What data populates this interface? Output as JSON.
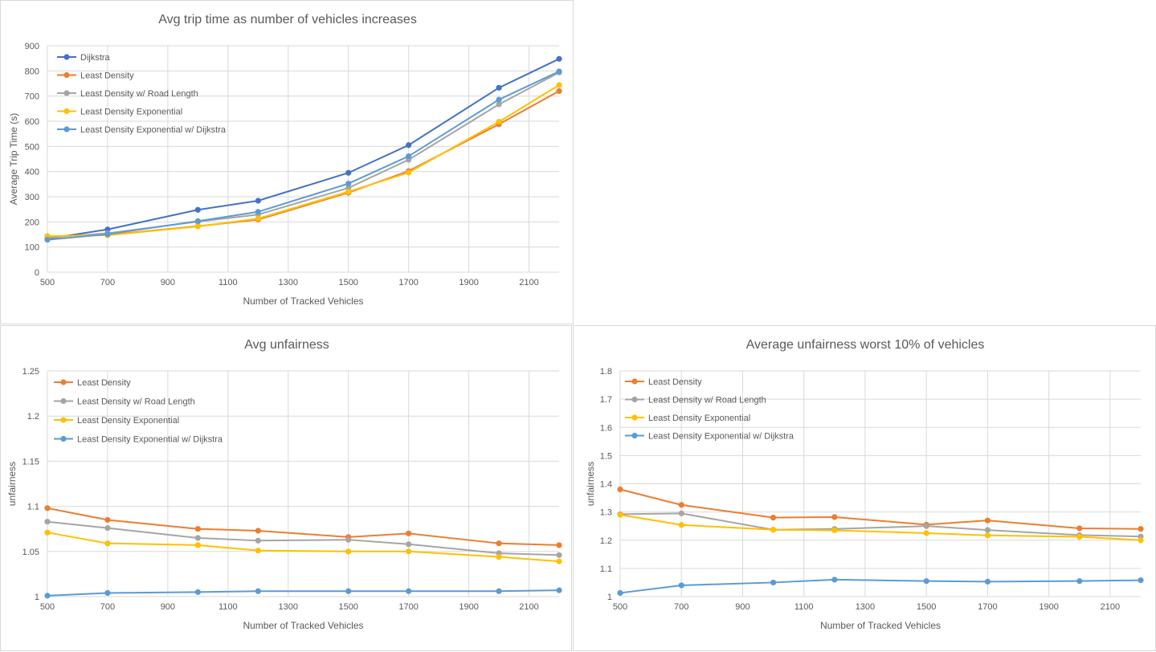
{
  "chart_data": [
    {
      "type": "line",
      "title": "Avg trip time as number of vehicles increases",
      "xlabel": "Number of Tracked Vehicles",
      "ylabel": "Average Trip Time (s)",
      "xlim": [
        500,
        2200
      ],
      "ylim": [
        0,
        900
      ],
      "xticks": [
        500,
        700,
        900,
        1100,
        1300,
        1500,
        1700,
        1900,
        2100
      ],
      "yticks": [
        0,
        100,
        200,
        300,
        400,
        500,
        600,
        700,
        800,
        900
      ],
      "ytick_labels": [
        "0",
        "100",
        "200",
        "300",
        "400",
        "500",
        "600",
        "700",
        "800",
        "900"
      ],
      "grid": true,
      "legend_position": "top-left",
      "x": [
        500,
        700,
        1000,
        1200,
        1500,
        1700,
        2000,
        2200
      ],
      "series": [
        {
          "name": "Dijkstra",
          "color": "#4472C4",
          "values": [
            133,
            170,
            248,
            284,
            395,
            505,
            733,
            848
          ]
        },
        {
          "name": "Least Density",
          "color": "#ED7D31",
          "values": [
            143,
            148,
            183,
            209,
            316,
            402,
            588,
            720
          ]
        },
        {
          "name": "Least Density w/ Road Length",
          "color": "#A5A5A5",
          "values": [
            137,
            155,
            201,
            229,
            335,
            447,
            667,
            794
          ]
        },
        {
          "name": "Least Density Exponential",
          "color": "#FFC000",
          "values": [
            143,
            147,
            182,
            213,
            320,
            396,
            598,
            744
          ]
        },
        {
          "name": "Least Density Exponential w/ Dijkstra",
          "color": "#5B9BD5",
          "values": [
            129,
            151,
            203,
            240,
            352,
            461,
            686,
            798
          ]
        }
      ]
    },
    {
      "type": "line",
      "title": "Avg unfairness",
      "xlabel": "Number of Tracked Vehicles",
      "ylabel": "unfairness",
      "xlim": [
        500,
        2200
      ],
      "ylim": [
        1,
        1.25
      ],
      "xticks": [
        500,
        700,
        900,
        1100,
        1300,
        1500,
        1700,
        1900,
        2100
      ],
      "yticks": [
        1,
        1.05,
        1.1,
        1.15,
        1.2,
        1.25
      ],
      "ytick_labels": [
        "1",
        "1.05",
        "1.1",
        "1.15",
        "1.2",
        "1.25"
      ],
      "grid": true,
      "legend_position": "top-left",
      "x": [
        500,
        700,
        1000,
        1200,
        1500,
        1700,
        2000,
        2200
      ],
      "series": [
        {
          "name": "Least Density",
          "color": "#ED7D31",
          "values": [
            1.098,
            1.085,
            1.075,
            1.073,
            1.066,
            1.07,
            1.059,
            1.057
          ]
        },
        {
          "name": "Least Density w/ Road Length",
          "color": "#A5A5A5",
          "values": [
            1.083,
            1.076,
            1.065,
            1.062,
            1.063,
            1.058,
            1.048,
            1.046
          ]
        },
        {
          "name": "Least Density Exponential",
          "color": "#FFC000",
          "values": [
            1.071,
            1.059,
            1.057,
            1.051,
            1.05,
            1.05,
            1.044,
            1.039
          ]
        },
        {
          "name": "Least Density Exponential w/ Dijkstra",
          "color": "#5B9BD5",
          "values": [
            1.001,
            1.004,
            1.005,
            1.006,
            1.006,
            1.006,
            1.006,
            1.007
          ]
        }
      ]
    },
    {
      "type": "line",
      "title": "Average unfairness worst 10% of vehicles",
      "xlabel": "Number of Tracked Vehicles",
      "ylabel": "unfairness",
      "xlim": [
        500,
        2200
      ],
      "ylim": [
        1,
        1.8
      ],
      "xticks": [
        500,
        700,
        900,
        1100,
        1300,
        1500,
        1700,
        1900,
        2100
      ],
      "yticks": [
        1,
        1.1,
        1.2,
        1.3,
        1.4,
        1.5,
        1.6,
        1.7,
        1.8
      ],
      "ytick_labels": [
        "1",
        "1.1",
        "1.2",
        "1.3",
        "1.4",
        "1.5",
        "1.6",
        "1.7",
        "1.8"
      ],
      "grid": true,
      "legend_position": "top-left",
      "x": [
        500,
        700,
        1000,
        1200,
        1500,
        1700,
        2000,
        2200
      ],
      "series": [
        {
          "name": "Least Density",
          "color": "#ED7D31",
          "values": [
            1.38,
            1.325,
            1.28,
            1.282,
            1.255,
            1.27,
            1.242,
            1.24
          ]
        },
        {
          "name": "Least Density w/ Road Length",
          "color": "#A5A5A5",
          "values": [
            1.292,
            1.295,
            1.237,
            1.24,
            1.25,
            1.236,
            1.218,
            1.213
          ]
        },
        {
          "name": "Least Density Exponential",
          "color": "#FFC000",
          "values": [
            1.29,
            1.254,
            1.237,
            1.235,
            1.225,
            1.217,
            1.212,
            1.2
          ]
        },
        {
          "name": "Least Density Exponential w/ Dijkstra",
          "color": "#5B9BD5",
          "values": [
            1.013,
            1.04,
            1.05,
            1.06,
            1.055,
            1.053,
            1.055,
            1.058
          ]
        }
      ]
    }
  ]
}
